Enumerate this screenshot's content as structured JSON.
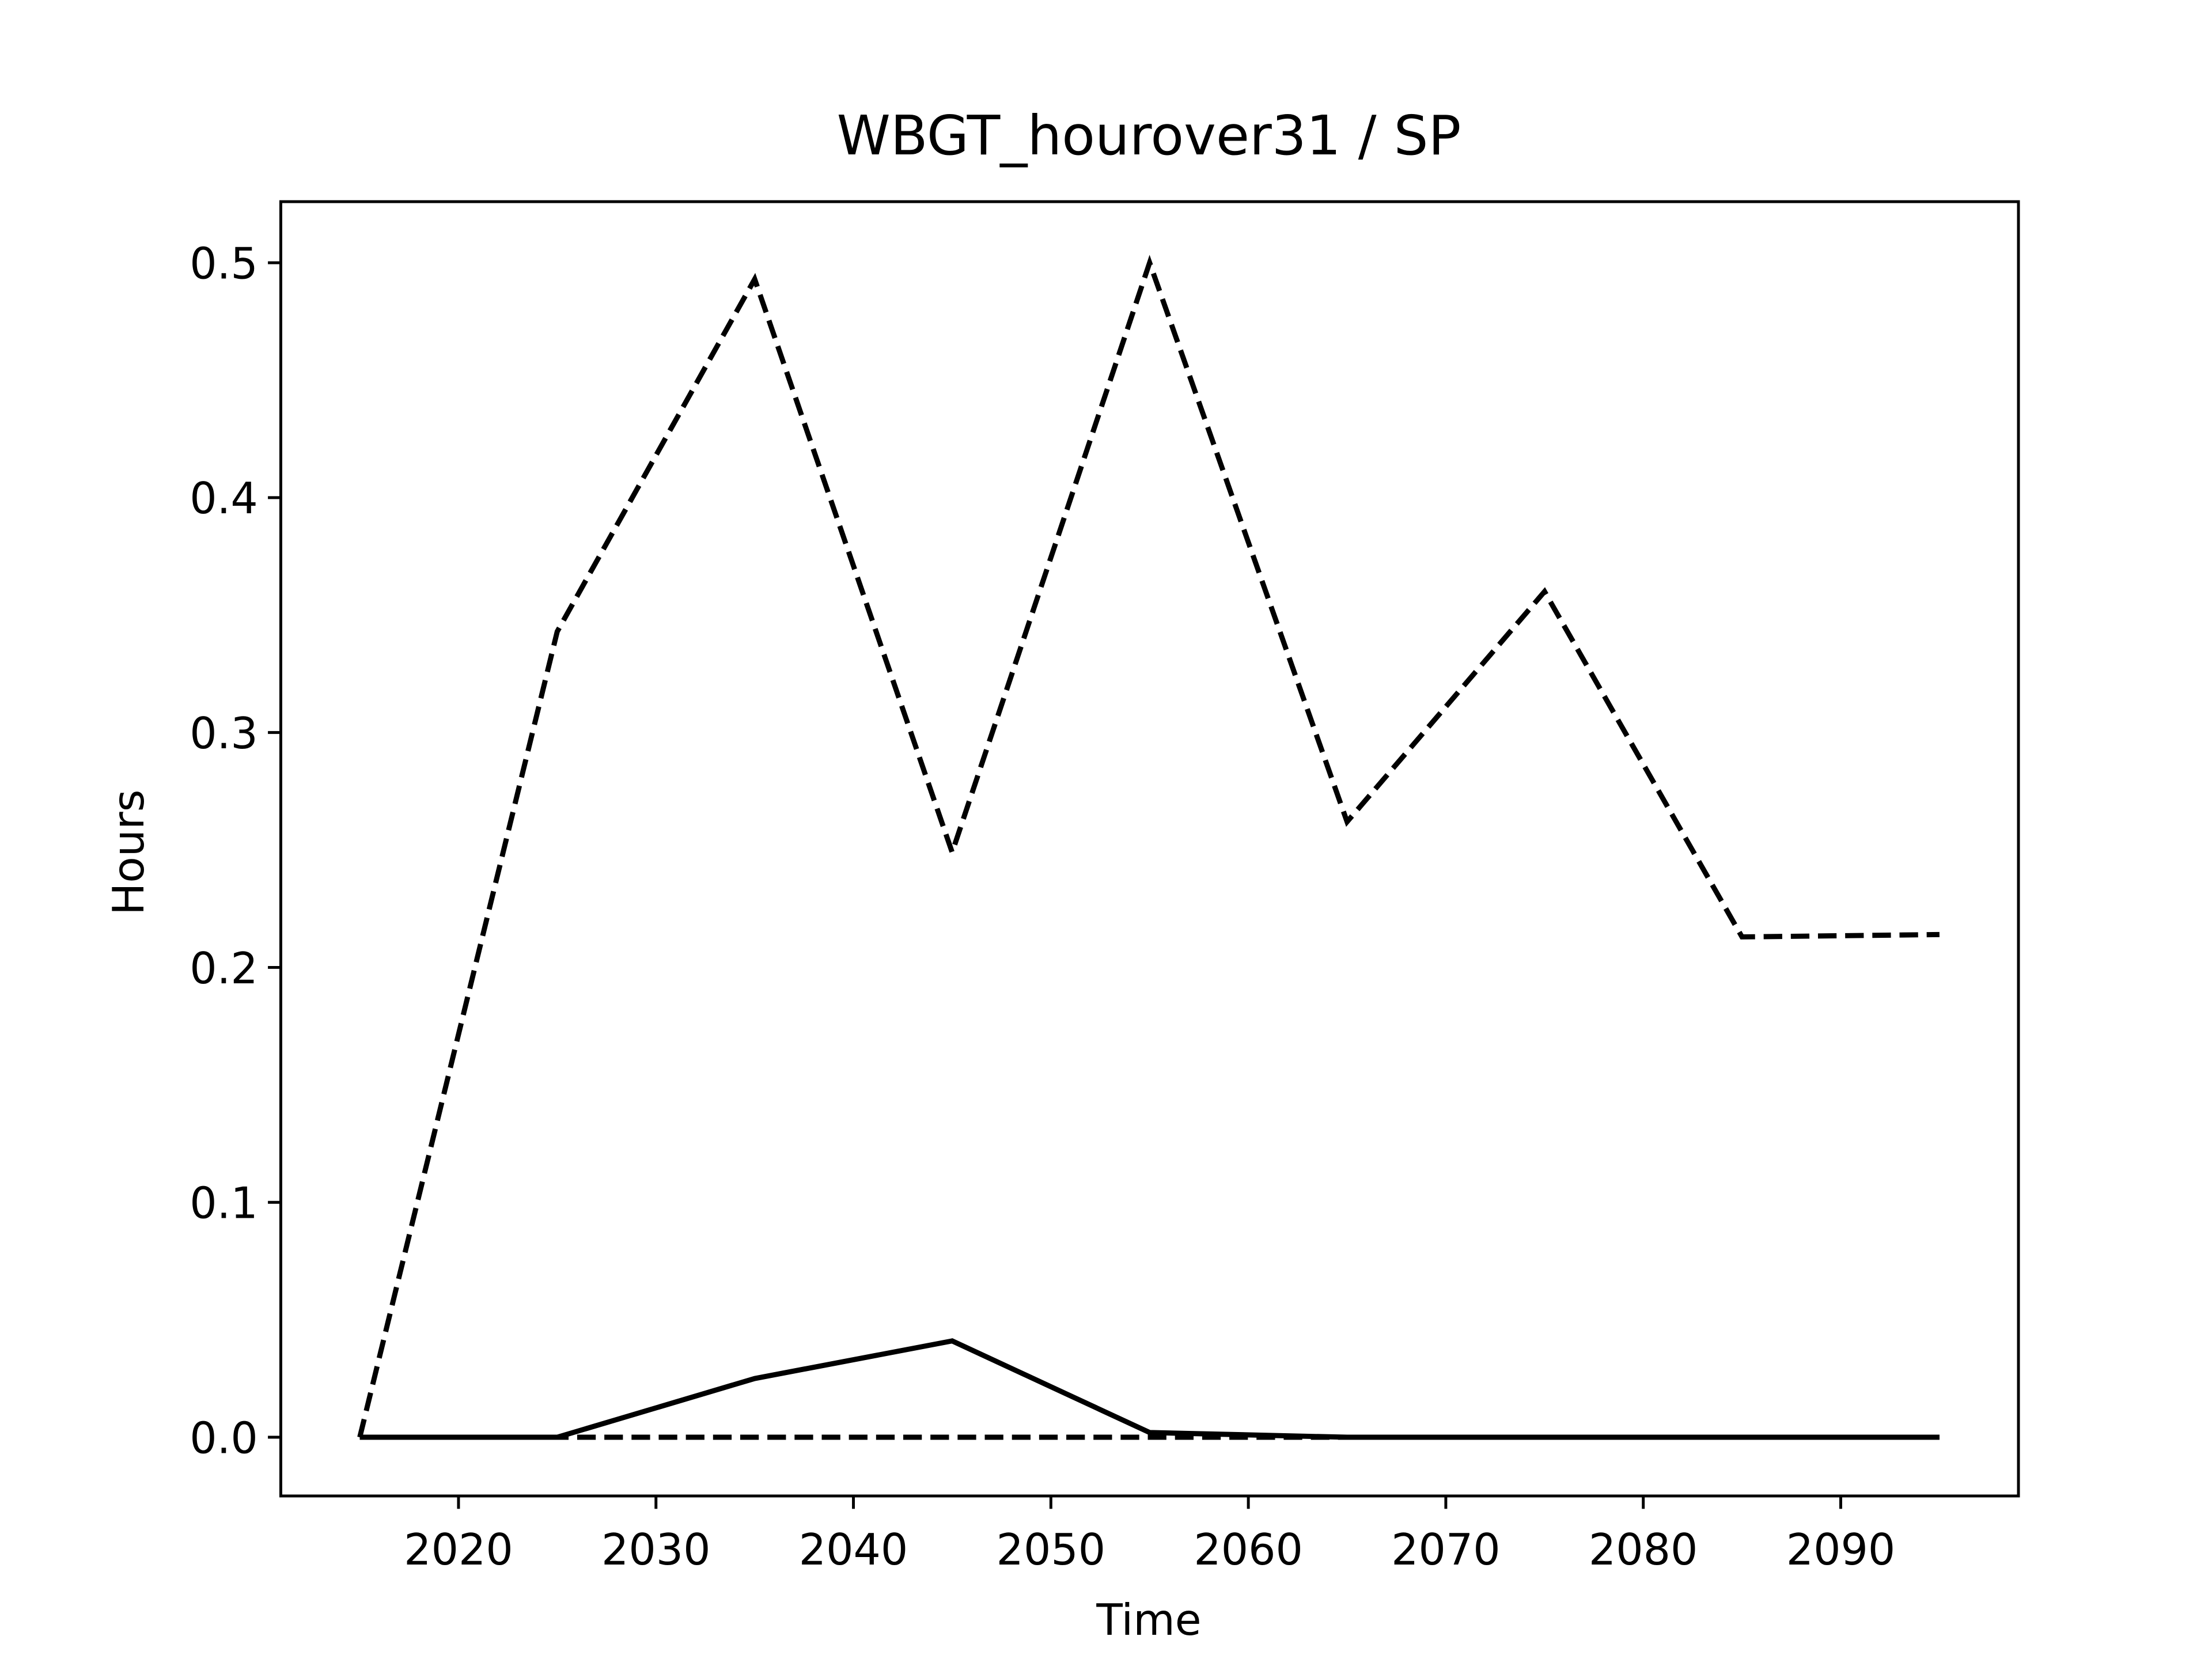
{
  "chart_data": {
    "type": "line",
    "title": "WBGT_hourover31 / SP",
    "x_label": "Time",
    "y_label": "Hours",
    "x": [
      2015,
      2025,
      2035,
      2045,
      2055,
      2065,
      2075,
      2085,
      2095
    ],
    "series": [
      {
        "color": "#000000",
        "style": "dashed",
        "values": [
          0,
          0.343,
          0.493,
          0.249,
          0.5,
          0.262,
          0.36,
          0.213,
          0.214
        ]
      },
      {
        "color": "#000000",
        "style": "solid",
        "values": [
          0,
          0,
          0.025,
          0.041,
          0.002,
          0,
          0,
          0,
          0
        ]
      },
      {
        "color": "#000000",
        "style": "dashed",
        "values": [
          0,
          0,
          0,
          0,
          0,
          0,
          0,
          0,
          0
        ]
      }
    ],
    "xlim": [
      2011,
      2099
    ],
    "ylim": [
      -0.025,
      0.526
    ],
    "xticks": [
      2020,
      2030,
      2040,
      2050,
      2060,
      2070,
      2080,
      2090
    ],
    "yticks": [
      {
        "value": 0,
        "label": "0.0"
      },
      0.1,
      0.2,
      0.3,
      0.4,
      0.5
    ],
    "grid": false
  }
}
